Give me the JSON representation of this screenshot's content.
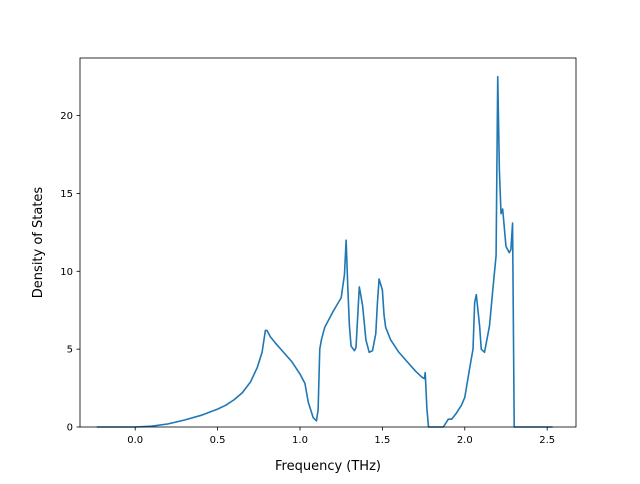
{
  "chart_data": {
    "type": "line",
    "title": "",
    "xlabel": "Frequency (THz)",
    "ylabel": "Density of States",
    "xlim": [
      -0.335,
      2.675
    ],
    "ylim": [
      0,
      23.7
    ],
    "xticks": [
      0.0,
      0.5,
      1.0,
      1.5,
      2.0,
      2.5
    ],
    "xtick_labels": [
      "0.0",
      "0.5",
      "1.0",
      "1.5",
      "2.0",
      "2.5"
    ],
    "yticks": [
      0,
      5,
      10,
      15,
      20
    ],
    "ytick_labels": [
      "0",
      "5",
      "10",
      "15",
      "20"
    ],
    "grid": false,
    "legend": "none",
    "series": [
      {
        "color": "#1f77b4",
        "x": [
          -0.23,
          0.0,
          0.1,
          0.2,
          0.3,
          0.4,
          0.5,
          0.55,
          0.6,
          0.65,
          0.7,
          0.74,
          0.77,
          0.79,
          0.8,
          0.82,
          0.85,
          0.9,
          0.95,
          1.0,
          1.03,
          1.05,
          1.08,
          1.1,
          1.11,
          1.12,
          1.13,
          1.15,
          1.2,
          1.25,
          1.27,
          1.28,
          1.29,
          1.3,
          1.31,
          1.33,
          1.34,
          1.36,
          1.38,
          1.4,
          1.42,
          1.44,
          1.46,
          1.47,
          1.48,
          1.5,
          1.51,
          1.52,
          1.55,
          1.6,
          1.65,
          1.7,
          1.74,
          1.755,
          1.76,
          1.77,
          1.78,
          1.85,
          1.87,
          1.9,
          1.92,
          1.95,
          1.98,
          2.0,
          2.03,
          2.05,
          2.06,
          2.07,
          2.09,
          2.1,
          2.12,
          2.15,
          2.17,
          2.19,
          2.2,
          2.21,
          2.22,
          2.23,
          2.25,
          2.27,
          2.28,
          2.29,
          2.3,
          2.31,
          2.35,
          2.4,
          2.5,
          2.53
        ],
        "y": [
          0.0,
          0.0,
          0.05,
          0.2,
          0.45,
          0.75,
          1.15,
          1.4,
          1.75,
          2.2,
          2.9,
          3.8,
          4.8,
          6.2,
          6.2,
          5.8,
          5.4,
          4.8,
          4.2,
          3.4,
          2.8,
          1.6,
          0.6,
          0.4,
          1.1,
          5.0,
          5.6,
          6.4,
          7.4,
          8.3,
          9.8,
          12.0,
          9.0,
          6.5,
          5.2,
          4.9,
          5.1,
          9.0,
          7.8,
          5.6,
          4.8,
          4.9,
          6.0,
          8.0,
          9.5,
          8.8,
          7.2,
          6.4,
          5.6,
          4.8,
          4.2,
          3.6,
          3.2,
          3.1,
          3.5,
          1.2,
          0.0,
          0.0,
          0.0,
          0.5,
          0.5,
          0.9,
          1.4,
          1.9,
          3.8,
          5.0,
          8.0,
          8.5,
          6.5,
          5.0,
          4.8,
          6.5,
          8.8,
          11.0,
          22.5,
          16.5,
          13.7,
          14.0,
          11.6,
          11.2,
          11.4,
          13.1,
          0.0,
          0.0,
          0.0,
          0.0,
          0.0,
          0.0
        ]
      }
    ]
  }
}
